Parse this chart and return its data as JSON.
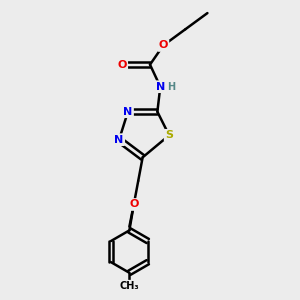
{
  "bg_color": "#ececec",
  "atom_colors": {
    "C": "#000000",
    "N": "#0000ee",
    "O": "#ee0000",
    "S": "#aaaa00",
    "H": "#558888"
  },
  "bond_color": "#000000",
  "bond_width": 1.8,
  "fig_size": [
    3.0,
    3.0
  ],
  "dpi": 100
}
